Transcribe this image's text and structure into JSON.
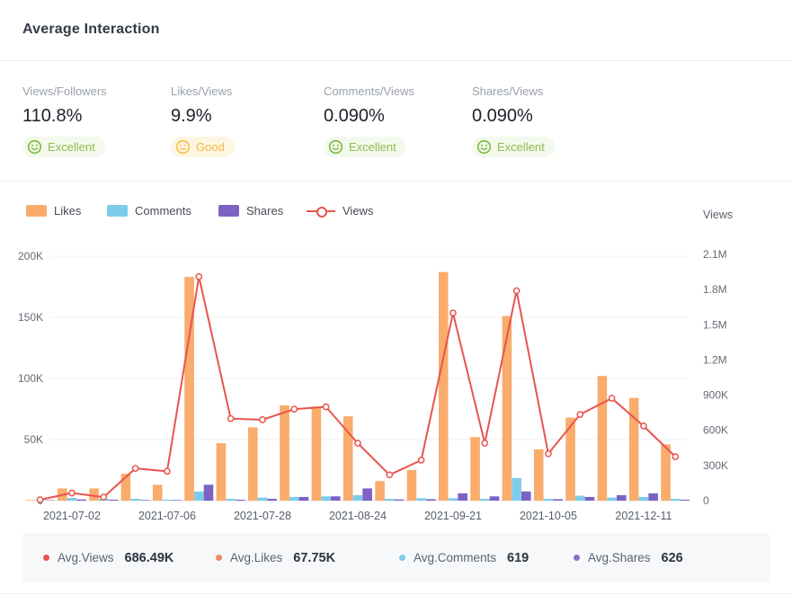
{
  "header": {
    "title": "Average Interaction"
  },
  "metrics": [
    {
      "label": "Views/Followers",
      "value": "110.8%",
      "rating": "Excellent",
      "sentiment": "excellent"
    },
    {
      "label": "Likes/Views",
      "value": "9.9%",
      "rating": "Good",
      "sentiment": "good"
    },
    {
      "label": "Comments/Views",
      "value": "0.090%",
      "rating": "Excellent",
      "sentiment": "excellent"
    },
    {
      "label": "Shares/Views",
      "value": "0.090%",
      "rating": "Excellent",
      "sentiment": "excellent"
    }
  ],
  "legend": [
    {
      "label": "Likes",
      "color": "#f9ac6b",
      "marker": "bar"
    },
    {
      "label": "Comments",
      "color": "#7dcbea",
      "marker": "bar"
    },
    {
      "label": "Shares",
      "color": "#7d62c3",
      "marker": "bar"
    },
    {
      "label": "Views",
      "color": "#e8544e",
      "marker": "line"
    }
  ],
  "right_axis_title": "Views",
  "chart_data": {
    "type": "bar+line combo",
    "point_count": 21,
    "note": "Bar values are left-axis equivalents in K as plotted; Views line uses right axis in K.",
    "x_tick_labels": [
      {
        "index": 1,
        "label": "2021-07-02"
      },
      {
        "index": 4,
        "label": "2021-07-06"
      },
      {
        "index": 7,
        "label": "2021-07-28"
      },
      {
        "index": 10,
        "label": "2021-08-24"
      },
      {
        "index": 13,
        "label": "2021-09-21"
      },
      {
        "index": 16,
        "label": "2021-10-05"
      },
      {
        "index": 19,
        "label": "2021-12-11"
      }
    ],
    "left_axis": {
      "ticks": [
        "200K",
        "150K",
        "100K",
        "50K",
        "0"
      ],
      "max": 200,
      "unit": "K"
    },
    "right_axis": {
      "ticks": [
        "2.1M",
        "1.8M",
        "1.5M",
        "1.2M",
        "900K",
        "600K",
        "300K",
        "0"
      ],
      "max": 2100,
      "unit": "K"
    },
    "grid": true,
    "legend_position": "top",
    "series": [
      {
        "name": "Likes",
        "type": "bar",
        "axis": "left",
        "color": "#f9ac6b",
        "values": [
          0.5,
          10,
          10,
          22,
          13,
          183,
          47,
          60,
          78,
          77,
          69,
          16,
          25,
          187,
          52,
          151,
          42,
          68,
          102,
          84,
          46
        ]
      },
      {
        "name": "Comments",
        "type": "bar",
        "axis": "left",
        "color": "#7dcbea",
        "values": [
          0.1,
          2.2,
          1.5,
          1.5,
          0.8,
          7.5,
          1.5,
          2.5,
          3,
          3.5,
          4.5,
          1.5,
          2,
          2,
          1.5,
          18.5,
          1.5,
          4,
          2.5,
          3,
          1.5
        ]
      },
      {
        "name": "Shares",
        "type": "bar",
        "axis": "left",
        "color": "#7d62c3",
        "values": [
          0.1,
          1,
          0.8,
          0.5,
          0.5,
          13,
          0.8,
          1.5,
          3,
          3.5,
          10,
          1,
          1.2,
          6,
          3.5,
          7.5,
          1.2,
          3,
          4.5,
          6,
          0.8
        ]
      },
      {
        "name": "Views",
        "type": "line",
        "axis": "right",
        "color": "#e8544e",
        "values": [
          8,
          65,
          30,
          275,
          250,
          1910,
          700,
          690,
          780,
          800,
          490,
          220,
          345,
          1600,
          490,
          1790,
          400,
          735,
          873,
          636,
          375
        ]
      }
    ]
  },
  "footer_stats": [
    {
      "label": "Avg.Views",
      "value": "686.49K",
      "color": "#e8544e"
    },
    {
      "label": "Avg.Likes",
      "value": "67.75K",
      "color": "#ed8a68"
    },
    {
      "label": "Avg.Comments",
      "value": "619",
      "color": "#7dcbea"
    },
    {
      "label": "Avg.Shares",
      "value": "626",
      "color": "#8a6fc8"
    }
  ],
  "colors": {
    "likes_bar": "#f9ac6b",
    "comments_bar": "#7dcbea",
    "shares_bar": "#7d62c3",
    "views_line": "#e8544e",
    "excellent_green": "#8cbe52",
    "excellent_bg": "#f3f9ec",
    "good_yellow": "#f5b941",
    "good_bg": "#fdf6e3",
    "grid_line": "#f0f1f3",
    "axis_text": "#646b74",
    "footer_bg": "#f7f8fa"
  }
}
